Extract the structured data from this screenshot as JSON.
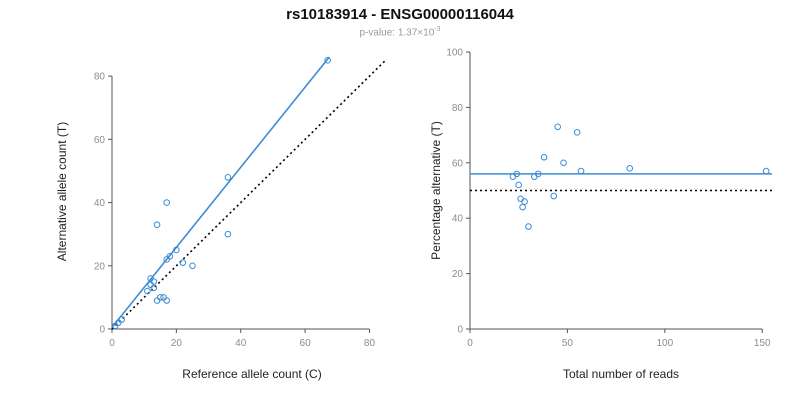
{
  "title": "rs10183914 - ENSG00000116044",
  "subtitle": {
    "prefix": "p-value: 1.37×10",
    "exponent": "-3"
  },
  "colors": {
    "accent_blue": "#3d8bd4",
    "dotted_line": "#000000",
    "axis": "#555555",
    "tick_label": "#8c8c8c",
    "axis_title": "#222222"
  },
  "chart_data": [
    {
      "type": "scatter",
      "name": "allele-counts",
      "xlabel": "Reference allele count (C)",
      "ylabel": "Alternative allele count (T)",
      "xlim": [
        0,
        87
      ],
      "ylim": [
        0,
        87
      ],
      "xticks": [
        0,
        20,
        40,
        60,
        80
      ],
      "yticks": [
        0,
        20,
        40,
        60,
        80
      ],
      "grid": false,
      "points": [
        [
          1,
          1
        ],
        [
          2,
          2
        ],
        [
          3,
          3
        ],
        [
          11,
          12
        ],
        [
          12,
          14
        ],
        [
          12,
          16
        ],
        [
          13,
          13
        ],
        [
          13,
          15
        ],
        [
          14,
          9
        ],
        [
          15,
          10
        ],
        [
          16,
          10
        ],
        [
          17,
          9
        ],
        [
          17,
          22
        ],
        [
          18,
          23
        ],
        [
          20,
          25
        ],
        [
          22,
          21
        ],
        [
          25,
          20
        ],
        [
          14,
          33
        ],
        [
          17,
          40
        ],
        [
          36,
          30
        ],
        [
          36,
          48
        ],
        [
          67,
          85
        ]
      ],
      "lines": [
        {
          "name": "identity-line",
          "style": "dotted",
          "color": "black",
          "x1": 0,
          "y1": 0,
          "x2": 85,
          "y2": 85
        },
        {
          "name": "fit-line",
          "style": "solid",
          "color": "blue",
          "x1": 0,
          "y1": 0.5,
          "x2": 67.5,
          "y2": 86
        }
      ]
    },
    {
      "type": "scatter",
      "name": "percentage-vs-reads",
      "xlabel": "Total number of reads",
      "ylabel": "Percentage alternative (T)",
      "xlim": [
        0,
        155
      ],
      "ylim": [
        0,
        100
      ],
      "xticks": [
        0,
        50,
        100,
        150
      ],
      "yticks": [
        0,
        20,
        40,
        60,
        80,
        100
      ],
      "grid": false,
      "points": [
        [
          22,
          55
        ],
        [
          24,
          56
        ],
        [
          25,
          52
        ],
        [
          26,
          47
        ],
        [
          27,
          44
        ],
        [
          28,
          46
        ],
        [
          30,
          37
        ],
        [
          33,
          55
        ],
        [
          35,
          56
        ],
        [
          38,
          62
        ],
        [
          43,
          48
        ],
        [
          45,
          73
        ],
        [
          48,
          60
        ],
        [
          55,
          71
        ],
        [
          57,
          57
        ],
        [
          82,
          58
        ],
        [
          152,
          57
        ]
      ],
      "lines": [
        {
          "name": "expected-line",
          "style": "dotted",
          "color": "black",
          "x1": 0,
          "y1": 50,
          "x2": 155,
          "y2": 50
        },
        {
          "name": "mean-line",
          "style": "solid",
          "color": "blue",
          "x1": 0,
          "y1": 56,
          "x2": 155,
          "y2": 56
        }
      ]
    }
  ]
}
